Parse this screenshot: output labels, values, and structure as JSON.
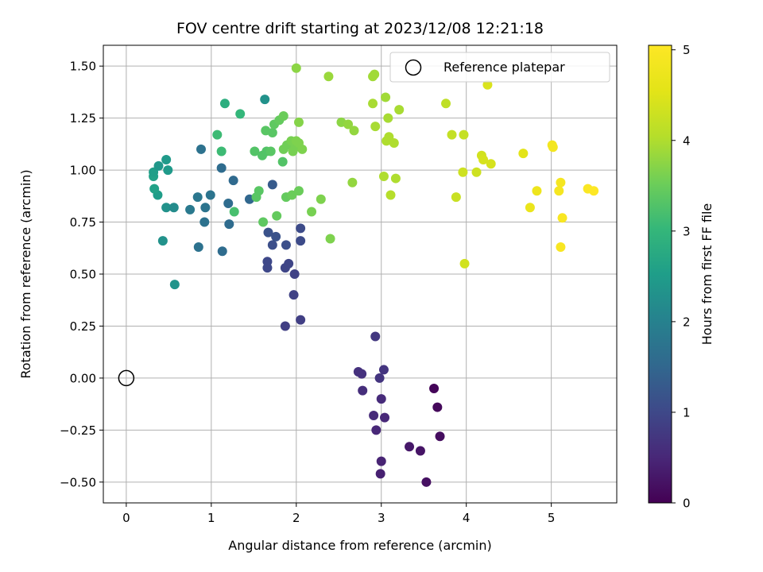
{
  "chart_data": {
    "type": "scatter",
    "title": "FOV centre drift starting at 2023/12/08 12:21:18",
    "xlabel": "Angular distance from reference (arcmin)",
    "ylabel": "Rotation from reference (arcmin)",
    "xlim": [
      -0.27,
      5.77
    ],
    "ylim": [
      -0.6,
      1.6
    ],
    "xticks": [
      0,
      1,
      2,
      3,
      4,
      5
    ],
    "xtick_labels": [
      "0",
      "1",
      "2",
      "3",
      "4",
      "5"
    ],
    "yticks": [
      -0.5,
      -0.25,
      0.0,
      0.25,
      0.5,
      0.75,
      1.0,
      1.25,
      1.5
    ],
    "ytick_labels": [
      "−0.50",
      "−0.25",
      "0.00",
      "0.25",
      "0.50",
      "0.75",
      "1.00",
      "1.25",
      "1.50"
    ],
    "grid": true,
    "legend": {
      "placement": "top-right",
      "entries": [
        {
          "label": "Reference platepar",
          "marker": "open-circle",
          "x": 0,
          "y": 0
        }
      ]
    },
    "colorbar": {
      "label": "Hours from first FF file",
      "range": [
        0,
        5.05
      ],
      "ticks": [
        0,
        1,
        2,
        3,
        4,
        5
      ],
      "tick_labels": [
        "0",
        "1",
        "2",
        "3",
        "4",
        "5"
      ],
      "colormap": "viridis"
    },
    "points": [
      {
        "x": 3.62,
        "y": -0.05,
        "c": 0.05
      },
      {
        "x": 3.66,
        "y": -0.14,
        "c": 0.1
      },
      {
        "x": 3.69,
        "y": -0.28,
        "c": 0.15
      },
      {
        "x": 3.53,
        "y": -0.5,
        "c": 0.2
      },
      {
        "x": 3.46,
        "y": -0.35,
        "c": 0.25
      },
      {
        "x": 3.33,
        "y": -0.33,
        "c": 0.3
      },
      {
        "x": 2.99,
        "y": -0.46,
        "c": 0.4
      },
      {
        "x": 3.0,
        "y": -0.4,
        "c": 0.45
      },
      {
        "x": 3.04,
        "y": -0.19,
        "c": 0.5
      },
      {
        "x": 2.94,
        "y": -0.25,
        "c": 0.5
      },
      {
        "x": 2.91,
        "y": -0.18,
        "c": 0.55
      },
      {
        "x": 3.0,
        "y": -0.1,
        "c": 0.55
      },
      {
        "x": 2.78,
        "y": -0.06,
        "c": 0.6
      },
      {
        "x": 2.77,
        "y": 0.02,
        "c": 0.65
      },
      {
        "x": 2.73,
        "y": 0.03,
        "c": 0.65
      },
      {
        "x": 2.98,
        "y": 0.0,
        "c": 0.7
      },
      {
        "x": 3.03,
        "y": 0.04,
        "c": 0.7
      },
      {
        "x": 2.93,
        "y": 0.2,
        "c": 0.75
      },
      {
        "x": 2.05,
        "y": 0.28,
        "c": 0.85
      },
      {
        "x": 1.87,
        "y": 0.25,
        "c": 0.85
      },
      {
        "x": 1.97,
        "y": 0.4,
        "c": 0.9
      },
      {
        "x": 1.98,
        "y": 0.5,
        "c": 0.9
      },
      {
        "x": 1.87,
        "y": 0.53,
        "c": 0.95
      },
      {
        "x": 1.91,
        "y": 0.55,
        "c": 0.95
      },
      {
        "x": 1.66,
        "y": 0.53,
        "c": 1.0
      },
      {
        "x": 1.66,
        "y": 0.56,
        "c": 1.0
      },
      {
        "x": 2.05,
        "y": 0.66,
        "c": 1.05
      },
      {
        "x": 2.05,
        "y": 0.72,
        "c": 1.05
      },
      {
        "x": 1.72,
        "y": 0.64,
        "c": 1.1
      },
      {
        "x": 1.88,
        "y": 0.64,
        "c": 1.1
      },
      {
        "x": 1.67,
        "y": 0.7,
        "c": 1.15
      },
      {
        "x": 1.76,
        "y": 0.68,
        "c": 1.15
      },
      {
        "x": 1.72,
        "y": 0.93,
        "c": 1.3
      },
      {
        "x": 1.13,
        "y": 0.61,
        "c": 1.6
      },
      {
        "x": 0.85,
        "y": 0.63,
        "c": 1.7
      },
      {
        "x": 0.92,
        "y": 0.75,
        "c": 1.7
      },
      {
        "x": 1.21,
        "y": 0.74,
        "c": 1.6
      },
      {
        "x": 0.93,
        "y": 0.82,
        "c": 1.75
      },
      {
        "x": 0.99,
        "y": 0.88,
        "c": 1.75
      },
      {
        "x": 0.84,
        "y": 0.87,
        "c": 1.8
      },
      {
        "x": 0.75,
        "y": 0.81,
        "c": 1.85
      },
      {
        "x": 1.2,
        "y": 0.84,
        "c": 1.6
      },
      {
        "x": 1.26,
        "y": 0.95,
        "c": 1.55
      },
      {
        "x": 1.12,
        "y": 1.01,
        "c": 1.6
      },
      {
        "x": 0.88,
        "y": 1.1,
        "c": 1.7
      },
      {
        "x": 1.45,
        "y": 0.86,
        "c": 1.5
      },
      {
        "x": 0.57,
        "y": 0.45,
        "c": 2.35
      },
      {
        "x": 0.43,
        "y": 0.66,
        "c": 2.3
      },
      {
        "x": 0.47,
        "y": 0.82,
        "c": 2.3
      },
      {
        "x": 0.56,
        "y": 0.82,
        "c": 2.2
      },
      {
        "x": 0.37,
        "y": 0.88,
        "c": 2.5
      },
      {
        "x": 0.32,
        "y": 0.97,
        "c": 2.6
      },
      {
        "x": 0.32,
        "y": 0.99,
        "c": 2.55
      },
      {
        "x": 0.38,
        "y": 1.02,
        "c": 2.4
      },
      {
        "x": 0.47,
        "y": 1.05,
        "c": 2.45
      },
      {
        "x": 0.49,
        "y": 1.0,
        "c": 2.45
      },
      {
        "x": 0.33,
        "y": 0.91,
        "c": 2.6
      },
      {
        "x": 1.63,
        "y": 1.34,
        "c": 2.3
      },
      {
        "x": 1.16,
        "y": 1.32,
        "c": 2.85
      },
      {
        "x": 1.34,
        "y": 1.27,
        "c": 3.0
      },
      {
        "x": 1.07,
        "y": 1.17,
        "c": 3.1
      },
      {
        "x": 1.12,
        "y": 1.09,
        "c": 3.1
      },
      {
        "x": 1.27,
        "y": 0.8,
        "c": 3.2
      },
      {
        "x": 1.51,
        "y": 1.09,
        "c": 3.3
      },
      {
        "x": 1.6,
        "y": 1.07,
        "c": 3.3
      },
      {
        "x": 1.65,
        "y": 1.09,
        "c": 3.3
      },
      {
        "x": 1.7,
        "y": 1.09,
        "c": 3.35
      },
      {
        "x": 1.72,
        "y": 1.18,
        "c": 3.35
      },
      {
        "x": 1.64,
        "y": 1.19,
        "c": 3.35
      },
      {
        "x": 1.74,
        "y": 1.22,
        "c": 3.4
      },
      {
        "x": 1.8,
        "y": 1.24,
        "c": 3.45
      },
      {
        "x": 1.85,
        "y": 1.26,
        "c": 3.5
      },
      {
        "x": 1.84,
        "y": 1.04,
        "c": 3.3
      },
      {
        "x": 1.56,
        "y": 0.9,
        "c": 3.35
      },
      {
        "x": 1.53,
        "y": 0.87,
        "c": 3.35
      },
      {
        "x": 1.61,
        "y": 0.75,
        "c": 3.4
      },
      {
        "x": 1.77,
        "y": 0.78,
        "c": 3.45
      },
      {
        "x": 1.88,
        "y": 0.87,
        "c": 3.45
      },
      {
        "x": 1.95,
        "y": 0.88,
        "c": 3.5
      },
      {
        "x": 2.03,
        "y": 0.9,
        "c": 3.5
      },
      {
        "x": 1.85,
        "y": 1.1,
        "c": 3.55
      },
      {
        "x": 1.89,
        "y": 1.12,
        "c": 3.55
      },
      {
        "x": 1.94,
        "y": 1.14,
        "c": 3.6
      },
      {
        "x": 1.96,
        "y": 1.09,
        "c": 3.6
      },
      {
        "x": 1.99,
        "y": 1.11,
        "c": 3.6
      },
      {
        "x": 2.0,
        "y": 1.14,
        "c": 3.65
      },
      {
        "x": 2.03,
        "y": 1.13,
        "c": 3.65
      },
      {
        "x": 2.07,
        "y": 1.1,
        "c": 3.65
      },
      {
        "x": 2.03,
        "y": 1.23,
        "c": 3.7
      },
      {
        "x": 2.18,
        "y": 0.8,
        "c": 3.6
      },
      {
        "x": 2.29,
        "y": 0.86,
        "c": 3.65
      },
      {
        "x": 2.4,
        "y": 0.67,
        "c": 3.65
      },
      {
        "x": 2.0,
        "y": 1.49,
        "c": 3.75
      },
      {
        "x": 2.38,
        "y": 1.45,
        "c": 3.85
      },
      {
        "x": 2.53,
        "y": 1.23,
        "c": 3.75
      },
      {
        "x": 2.61,
        "y": 1.22,
        "c": 3.8
      },
      {
        "x": 2.68,
        "y": 1.19,
        "c": 3.8
      },
      {
        "x": 2.66,
        "y": 0.94,
        "c": 3.8
      },
      {
        "x": 2.9,
        "y": 1.45,
        "c": 3.9
      },
      {
        "x": 2.92,
        "y": 1.46,
        "c": 3.9
      },
      {
        "x": 2.9,
        "y": 1.32,
        "c": 3.95
      },
      {
        "x": 2.93,
        "y": 1.21,
        "c": 3.95
      },
      {
        "x": 3.05,
        "y": 1.35,
        "c": 3.9
      },
      {
        "x": 3.08,
        "y": 1.25,
        "c": 3.95
      },
      {
        "x": 3.21,
        "y": 1.29,
        "c": 3.95
      },
      {
        "x": 3.06,
        "y": 1.14,
        "c": 4.0
      },
      {
        "x": 3.09,
        "y": 1.16,
        "c": 4.0
      },
      {
        "x": 3.15,
        "y": 1.13,
        "c": 4.0
      },
      {
        "x": 3.03,
        "y": 0.97,
        "c": 4.0
      },
      {
        "x": 3.17,
        "y": 0.96,
        "c": 4.0
      },
      {
        "x": 3.11,
        "y": 0.88,
        "c": 4.05
      },
      {
        "x": 3.76,
        "y": 1.32,
        "c": 4.15
      },
      {
        "x": 3.83,
        "y": 1.17,
        "c": 4.2
      },
      {
        "x": 3.97,
        "y": 1.17,
        "c": 4.2
      },
      {
        "x": 3.88,
        "y": 0.87,
        "c": 4.25
      },
      {
        "x": 3.96,
        "y": 0.99,
        "c": 4.3
      },
      {
        "x": 4.12,
        "y": 0.99,
        "c": 4.3
      },
      {
        "x": 3.98,
        "y": 0.55,
        "c": 4.35
      },
      {
        "x": 4.18,
        "y": 1.07,
        "c": 4.35
      },
      {
        "x": 4.2,
        "y": 1.05,
        "c": 4.4
      },
      {
        "x": 4.29,
        "y": 1.03,
        "c": 4.4
      },
      {
        "x": 4.25,
        "y": 1.41,
        "c": 4.45
      },
      {
        "x": 4.67,
        "y": 1.08,
        "c": 4.55
      },
      {
        "x": 4.75,
        "y": 0.82,
        "c": 4.7
      },
      {
        "x": 4.83,
        "y": 0.9,
        "c": 4.75
      },
      {
        "x": 5.01,
        "y": 1.12,
        "c": 4.85
      },
      {
        "x": 5.02,
        "y": 1.11,
        "c": 4.85
      },
      {
        "x": 5.09,
        "y": 0.9,
        "c": 4.9
      },
      {
        "x": 5.11,
        "y": 0.94,
        "c": 4.9
      },
      {
        "x": 5.13,
        "y": 0.77,
        "c": 4.95
      },
      {
        "x": 5.11,
        "y": 0.63,
        "c": 4.95
      },
      {
        "x": 5.43,
        "y": 0.91,
        "c": 5.0
      },
      {
        "x": 5.5,
        "y": 0.9,
        "c": 5.05
      }
    ]
  }
}
